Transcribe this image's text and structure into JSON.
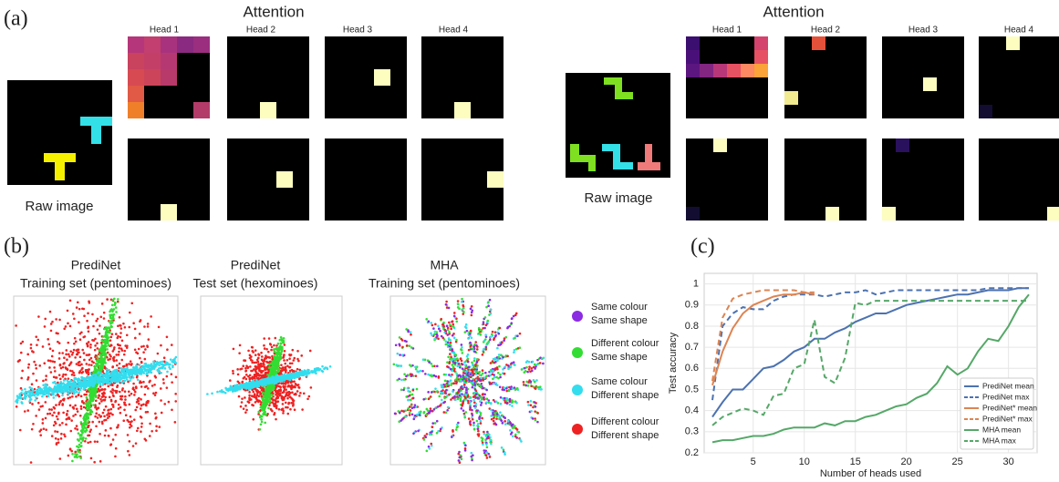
{
  "panel_labels": [
    "(a)",
    "(b)",
    "(c)"
  ],
  "attention": [
    {
      "title": "Attention",
      "heads": [
        "Head 1",
        "Head 2",
        "Head 3",
        "Head 4"
      ],
      "raw_label": "Raw image"
    },
    {
      "title": "Attention",
      "heads": [
        "Head 1",
        "Head 2",
        "Head 3",
        "Head 4"
      ],
      "raw_label": "Raw image"
    }
  ],
  "embeddings": {
    "plots": [
      {
        "title_lines": [
          "PrediNet",
          "Training set (pentominoes)"
        ]
      },
      {
        "title_lines": [
          "PrediNet",
          "Test set (hexominoes)"
        ]
      },
      {
        "title_lines": [
          "MHA",
          "Training set (pentominoes)"
        ]
      }
    ],
    "legend": [
      {
        "lines": [
          "Same colour",
          "Same shape"
        ],
        "color": "#8b2be2"
      },
      {
        "lines": [
          "Different colour",
          "Same shape"
        ],
        "color": "#33dd33"
      },
      {
        "lines": [
          "Same colour",
          "Different shape"
        ],
        "color": "#33ddee"
      },
      {
        "lines": [
          "Different colour",
          "Different shape"
        ],
        "color": "#ee2222"
      }
    ]
  },
  "chart_data": {
    "type": "line",
    "xlabel": "Number of heads used",
    "ylabel": "Test accuracy",
    "x": [
      1,
      2,
      3,
      4,
      5,
      6,
      7,
      8,
      9,
      10,
      11,
      12,
      13,
      14,
      15,
      16,
      17,
      18,
      19,
      20,
      21,
      22,
      23,
      24,
      25,
      26,
      27,
      28,
      29,
      30,
      31,
      32
    ],
    "xlim": [
      0.2,
      32.8
    ],
    "xticks": [
      5,
      10,
      15,
      20,
      25,
      30
    ],
    "ylim": [
      0.2,
      1.05
    ],
    "yticks": [
      0.2,
      0.3,
      0.4,
      0.5,
      0.6,
      0.7,
      0.8,
      0.9,
      1.0
    ],
    "grid": true,
    "legend_position": "lower right",
    "series": [
      {
        "name": "PrediNet mean",
        "color": "#4c72b0",
        "dash": false,
        "values": [
          0.37,
          0.44,
          0.5,
          0.5,
          0.55,
          0.6,
          0.61,
          0.64,
          0.68,
          0.7,
          0.74,
          0.74,
          0.77,
          0.79,
          0.82,
          0.84,
          0.86,
          0.86,
          0.88,
          0.9,
          0.91,
          0.92,
          0.93,
          0.94,
          0.95,
          0.95,
          0.96,
          0.97,
          0.97,
          0.97,
          0.98,
          0.98
        ]
      },
      {
        "name": "PrediNet max",
        "color": "#4c72b0",
        "dash": true,
        "values": [
          0.45,
          0.8,
          0.86,
          0.89,
          0.88,
          0.88,
          0.92,
          0.94,
          0.95,
          0.95,
          0.95,
          0.94,
          0.95,
          0.96,
          0.96,
          0.97,
          0.95,
          0.96,
          0.97,
          0.97,
          0.97,
          0.97,
          0.97,
          0.97,
          0.97,
          0.97,
          0.97,
          0.98,
          0.98,
          0.98,
          0.98,
          0.98
        ]
      },
      {
        "name": "PrediNet* mean",
        "color": "#dd8452",
        "dash": false,
        "values": [
          0.52,
          0.68,
          0.79,
          0.86,
          0.9,
          0.92,
          0.94,
          0.95,
          0.95,
          0.96,
          0.95,
          null,
          null,
          null,
          null,
          null,
          null,
          null,
          null,
          null,
          null,
          null,
          null,
          null,
          null,
          null,
          null,
          null,
          null,
          null,
          null,
          null
        ]
      },
      {
        "name": "PrediNet* max",
        "color": "#dd8452",
        "dash": true,
        "values": [
          0.54,
          0.84,
          0.93,
          0.95,
          0.96,
          0.97,
          0.97,
          0.97,
          0.97,
          0.96,
          0.96,
          null,
          null,
          null,
          null,
          null,
          null,
          null,
          null,
          null,
          null,
          null,
          null,
          null,
          null,
          null,
          null,
          null,
          null,
          null,
          null,
          null
        ]
      },
      {
        "name": "MHA mean",
        "color": "#55a868",
        "dash": false,
        "values": [
          0.25,
          0.26,
          0.26,
          0.27,
          0.28,
          0.28,
          0.29,
          0.31,
          0.32,
          0.32,
          0.32,
          0.34,
          0.33,
          0.35,
          0.35,
          0.37,
          0.38,
          0.4,
          0.42,
          0.43,
          0.46,
          0.48,
          0.53,
          0.61,
          0.57,
          0.6,
          0.68,
          0.74,
          0.73,
          0.8,
          0.89,
          0.95
        ]
      },
      {
        "name": "MHA max",
        "color": "#55a868",
        "dash": true,
        "values": [
          0.33,
          0.37,
          0.39,
          0.41,
          0.4,
          0.38,
          0.47,
          0.48,
          0.6,
          0.62,
          0.83,
          0.56,
          0.53,
          0.65,
          0.91,
          0.9,
          0.92,
          0.92,
          0.92,
          0.92,
          0.92,
          0.92,
          0.92,
          0.92,
          0.92,
          0.92,
          0.92,
          0.92,
          0.92,
          0.92,
          0.92,
          0.92
        ]
      }
    ]
  }
}
